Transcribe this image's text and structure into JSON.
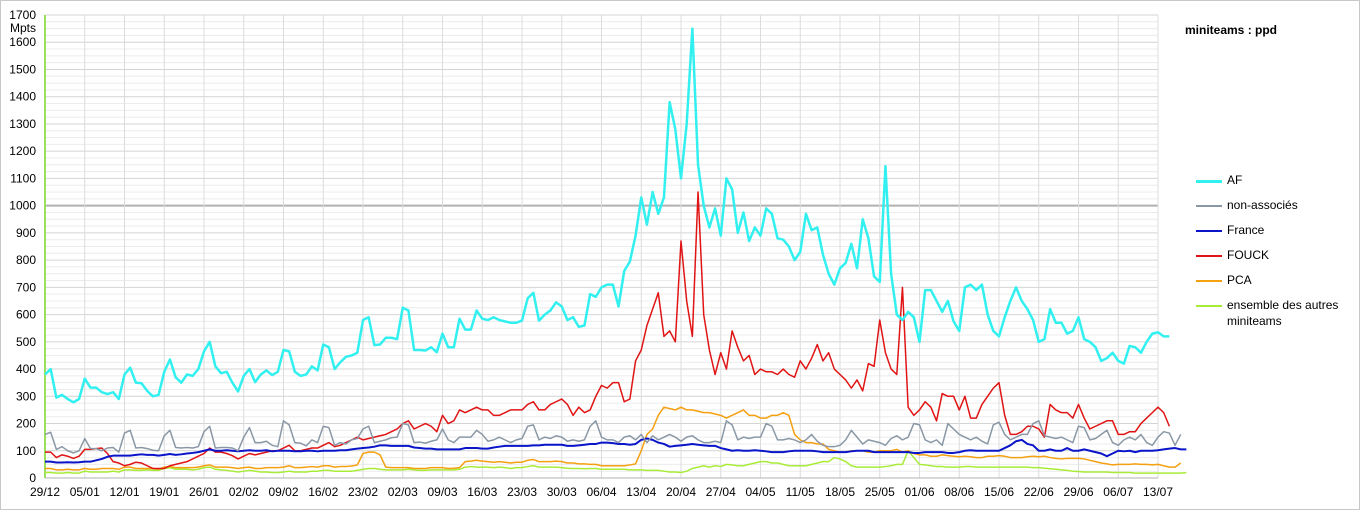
{
  "chart_data": {
    "type": "line",
    "title": "miniteams : ppd",
    "ylabel": "Mpts",
    "xlabel": "",
    "ylim": [
      0,
      1700
    ],
    "yticks": [
      0,
      100,
      200,
      300,
      400,
      500,
      600,
      700,
      800,
      900,
      1000,
      1100,
      1200,
      1300,
      1400,
      1500,
      1600,
      1700
    ],
    "xtick_labels": [
      "29/12",
      "05/01",
      "12/01",
      "19/01",
      "26/01",
      "02/02",
      "09/02",
      "16/02",
      "23/02",
      "02/03",
      "09/03",
      "16/03",
      "23/03",
      "30/03",
      "06/04",
      "13/04",
      "20/04",
      "27/04",
      "04/05",
      "11/05",
      "18/05",
      "25/05",
      "01/06",
      "08/06",
      "15/06",
      "22/06",
      "29/06",
      "06/07",
      "13/07"
    ],
    "days": 197,
    "grid": "on",
    "legend_position": "right",
    "series": [
      {
        "name": "AF",
        "color": "#33f0f0",
        "width": 2.5,
        "values": [
          380,
          400,
          295,
          305,
          290,
          278,
          290,
          365,
          332,
          332,
          315,
          308,
          315,
          290,
          380,
          405,
          350,
          348,
          320,
          300,
          305,
          390,
          435,
          370,
          350,
          380,
          375,
          400,
          465,
          500,
          410,
          385,
          390,
          350,
          318,
          375,
          400,
          352,
          380,
          395,
          378,
          390,
          470,
          465,
          390,
          375,
          380,
          410,
          395,
          490,
          480,
          400,
          425,
          445,
          450,
          460,
          580,
          590,
          488,
          490,
          515,
          515,
          510,
          625,
          615,
          470,
          470,
          468,
          480,
          462,
          530,
          480,
          480,
          585,
          545,
          545,
          615,
          585,
          580,
          590,
          580,
          575,
          570,
          570,
          578,
          660,
          680,
          578,
          600,
          615,
          645,
          630,
          580,
          590,
          555,
          560,
          675,
          665,
          700,
          710,
          710,
          630,
          760,
          795,
          890,
          1030,
          930,
          1050,
          970,
          1030,
          1380,
          1280,
          1100,
          1300,
          1650,
          1150,
          1000,
          920,
          990,
          890,
          1100,
          1060,
          900,
          975,
          870,
          920,
          890,
          990,
          970,
          880,
          875,
          850,
          800,
          830,
          970,
          910,
          920,
          820,
          750,
          710,
          770,
          790,
          860,
          770,
          950,
          880,
          740,
          720,
          1145,
          750,
          600,
          580,
          610,
          590,
          500,
          690,
          690,
          650,
          610,
          650,
          575,
          540,
          700,
          710,
          690,
          710,
          600,
          540,
          520,
          590,
          650,
          700,
          650,
          620,
          580,
          500,
          510,
          620,
          570,
          570,
          530,
          540,
          590,
          510,
          500,
          480,
          430,
          440,
          460,
          430,
          420,
          485,
          480,
          460,
          500,
          530,
          535,
          520,
          520
        ]
      },
      {
        "name": "non-associés",
        "color": "#8a98a6",
        "width": 1.5,
        "values": [
          160,
          168,
          105,
          115,
          100,
          92,
          100,
          145,
          108,
          108,
          100,
          110,
          112,
          95,
          165,
          175,
          110,
          112,
          108,
          102,
          100,
          155,
          175,
          112,
          110,
          112,
          110,
          115,
          170,
          190,
          110,
          112,
          112,
          110,
          100,
          150,
          185,
          130,
          130,
          135,
          120,
          115,
          210,
          195,
          130,
          128,
          118,
          140,
          130,
          190,
          185,
          120,
          130,
          125,
          140,
          145,
          180,
          190,
          130,
          135,
          140,
          148,
          150,
          200,
          195,
          130,
          132,
          128,
          135,
          140,
          180,
          140,
          130,
          150,
          150,
          150,
          175,
          160,
          135,
          140,
          150,
          140,
          130,
          140,
          145,
          190,
          195,
          140,
          150,
          145,
          155,
          150,
          135,
          140,
          135,
          140,
          190,
          210,
          150,
          140,
          140,
          130,
          150,
          155,
          140,
          160,
          130,
          155,
          140,
          150,
          160,
          150,
          135,
          150,
          155,
          140,
          130,
          130,
          135,
          130,
          210,
          195,
          140,
          150,
          145,
          150,
          150,
          200,
          190,
          140,
          140,
          145,
          140,
          130,
          140,
          160,
          135,
          120,
          115,
          115,
          120,
          140,
          175,
          150,
          125,
          140,
          135,
          130,
          120,
          145,
          155,
          140,
          150,
          200,
          195,
          140,
          130,
          140,
          120,
          200,
          180,
          160,
          150,
          140,
          150,
          135,
          125,
          195,
          205,
          160,
          140,
          150,
          160,
          160,
          200,
          210,
          155,
          150,
          145,
          150,
          140,
          130,
          190,
          185,
          140,
          145,
          160,
          175,
          130,
          120,
          140,
          150,
          140,
          160,
          130,
          120,
          150,
          170,
          165,
          120,
          160
        ]
      },
      {
        "name": "France",
        "color": "#0a14c8",
        "width": 2,
        "values": [
          60,
          60,
          57,
          57,
          58,
          57,
          58,
          60,
          60,
          65,
          70,
          78,
          82,
          82,
          82,
          82,
          85,
          87,
          85,
          85,
          82,
          85,
          88,
          85,
          87,
          90,
          92,
          95,
          100,
          105,
          100,
          100,
          102,
          100,
          98,
          100,
          102,
          100,
          100,
          102,
          98,
          100,
          100,
          100,
          98,
          98,
          100,
          100,
          98,
          100,
          100,
          100,
          102,
          102,
          105,
          108,
          110,
          112,
          115,
          120,
          120,
          118,
          118,
          118,
          118,
          112,
          110,
          108,
          108,
          105,
          105,
          105,
          105,
          105,
          110,
          110,
          110,
          108,
          108,
          112,
          115,
          118,
          118,
          118,
          118,
          118,
          120,
          120,
          122,
          122,
          122,
          122,
          118,
          118,
          120,
          122,
          125,
          125,
          130,
          130,
          128,
          125,
          125,
          122,
          125,
          140,
          145,
          140,
          130,
          125,
          115,
          118,
          120,
          122,
          125,
          122,
          120,
          118,
          118,
          110,
          105,
          100,
          102,
          100,
          100,
          102,
          100,
          98,
          95,
          95,
          95,
          98,
          100,
          100,
          100,
          100,
          98,
          95,
          95,
          95,
          95,
          95,
          98,
          100,
          100,
          100,
          95,
          95,
          95,
          95,
          95,
          95,
          95,
          92,
          92,
          95,
          95,
          95,
          95,
          92,
          92,
          95,
          100,
          102,
          100,
          100,
          100,
          100,
          100,
          110,
          120,
          135,
          140,
          125,
          120,
          100,
          100,
          105,
          100,
          100,
          110,
          100,
          100,
          105,
          100,
          95,
          90,
          80,
          90,
          100,
          98,
          100,
          95,
          100,
          100,
          100,
          102,
          105,
          108,
          110,
          105,
          105
        ]
      },
      {
        "name": "FOUCK",
        "color": "#e01414",
        "width": 1.5,
        "values": [
          95,
          95,
          75,
          85,
          80,
          72,
          80,
          105,
          105,
          108,
          110,
          90,
          60,
          55,
          45,
          50,
          58,
          55,
          45,
          35,
          35,
          35,
          45,
          50,
          55,
          60,
          70,
          80,
          90,
          110,
          95,
          95,
          90,
          82,
          70,
          80,
          90,
          85,
          90,
          95,
          100,
          100,
          110,
          120,
          100,
          100,
          105,
          110,
          110,
          120,
          130,
          115,
          120,
          130,
          140,
          150,
          140,
          145,
          150,
          155,
          160,
          170,
          180,
          200,
          210,
          180,
          190,
          200,
          190,
          170,
          230,
          200,
          210,
          250,
          240,
          250,
          260,
          250,
          250,
          230,
          230,
          240,
          250,
          250,
          250,
          270,
          280,
          250,
          250,
          270,
          280,
          290,
          270,
          230,
          260,
          240,
          250,
          300,
          340,
          330,
          350,
          350,
          280,
          290,
          430,
          470,
          560,
          620,
          680,
          520,
          540,
          500,
          870,
          650,
          520,
          1050,
          600,
          470,
          380,
          460,
          400,
          540,
          480,
          430,
          450,
          380,
          400,
          390,
          390,
          380,
          400,
          380,
          370,
          430,
          400,
          440,
          490,
          430,
          460,
          400,
          380,
          360,
          330,
          360,
          320,
          420,
          410,
          580,
          460,
          400,
          380,
          700,
          260,
          230,
          250,
          280,
          260,
          210,
          310,
          300,
          300,
          250,
          300,
          220,
          220,
          270,
          300,
          330,
          350,
          230,
          160,
          160,
          170,
          190,
          190,
          180,
          150,
          270,
          250,
          240,
          240,
          220,
          270,
          220,
          180,
          190,
          200,
          210,
          210,
          160,
          160,
          170,
          170,
          200,
          220,
          240,
          260,
          240,
          190
        ]
      },
      {
        "name": "PCA",
        "color": "#f4a010",
        "width": 1.5,
        "values": [
          35,
          35,
          30,
          30,
          32,
          30,
          30,
          35,
          32,
          32,
          35,
          35,
          35,
          32,
          40,
          40,
          35,
          35,
          35,
          35,
          32,
          40,
          42,
          38,
          38,
          38,
          38,
          40,
          45,
          48,
          40,
          40,
          40,
          38,
          35,
          38,
          40,
          35,
          35,
          38,
          38,
          38,
          40,
          45,
          38,
          38,
          40,
          42,
          40,
          45,
          45,
          40,
          42,
          42,
          44,
          48,
          90,
          95,
          95,
          85,
          40,
          38,
          38,
          38,
          38,
          35,
          35,
          35,
          38,
          38,
          38,
          35,
          36,
          38,
          60,
          62,
          65,
          62,
          60,
          58,
          60,
          58,
          55,
          58,
          58,
          65,
          68,
          60,
          60,
          60,
          62,
          60,
          55,
          55,
          52,
          52,
          50,
          50,
          45,
          45,
          45,
          45,
          45,
          48,
          52,
          100,
          160,
          180,
          230,
          260,
          255,
          250,
          260,
          250,
          250,
          245,
          240,
          240,
          235,
          230,
          220,
          230,
          240,
          250,
          230,
          230,
          220,
          220,
          230,
          230,
          240,
          230,
          160,
          140,
          130,
          130,
          125,
          125,
          105,
          100,
          95,
          95,
          100,
          100,
          100,
          95,
          95,
          100,
          100,
          100,
          105,
          95,
          100,
          90,
          85,
          85,
          80,
          80,
          85,
          82,
          80,
          78,
          80,
          78,
          75,
          75,
          80,
          80,
          82,
          80,
          75,
          75,
          75,
          78,
          80,
          78,
          80,
          75,
          72,
          70,
          72,
          72,
          72,
          70,
          65,
          60,
          55,
          52,
          48,
          50,
          50,
          50,
          52,
          50,
          50,
          48,
          50,
          45,
          40,
          40,
          55
        ]
      },
      {
        "name": "ensemble des autres miniteams",
        "color": "#a8ec38",
        "width": 1.5,
        "values": [
          20,
          20,
          18,
          18,
          20,
          18,
          18,
          25,
          22,
          22,
          22,
          22,
          25,
          22,
          30,
          30,
          28,
          28,
          30,
          28,
          28,
          35,
          38,
          32,
          32,
          32,
          30,
          32,
          38,
          40,
          32,
          30,
          28,
          25,
          22,
          25,
          28,
          25,
          22,
          22,
          20,
          20,
          22,
          25,
          22,
          22,
          22,
          25,
          25,
          28,
          28,
          25,
          25,
          25,
          25,
          28,
          32,
          35,
          35,
          32,
          30,
          30,
          30,
          30,
          32,
          30,
          28,
          28,
          30,
          30,
          30,
          30,
          30,
          32,
          40,
          42,
          40,
          40,
          40,
          38,
          40,
          38,
          35,
          38,
          38,
          42,
          45,
          40,
          40,
          40,
          40,
          38,
          36,
          35,
          35,
          34,
          35,
          35,
          32,
          32,
          32,
          32,
          32,
          30,
          30,
          30,
          28,
          28,
          28,
          25,
          22,
          22,
          20,
          25,
          35,
          40,
          45,
          40,
          45,
          42,
          50,
          48,
          45,
          45,
          50,
          55,
          60,
          60,
          55,
          55,
          50,
          45,
          45,
          45,
          45,
          50,
          55,
          60,
          60,
          75,
          70,
          60,
          45,
          40,
          40,
          40,
          40,
          40,
          42,
          45,
          50,
          50,
          100,
          75,
          50,
          48,
          45,
          42,
          42,
          40,
          40,
          40,
          42,
          42,
          40,
          40,
          40,
          40,
          40,
          40,
          40,
          40,
          40,
          40,
          38,
          38,
          36,
          34,
          32,
          30,
          28,
          25,
          24,
          22,
          22,
          22,
          22,
          22,
          20,
          20,
          20,
          20,
          18,
          18,
          18,
          18,
          18,
          18,
          18,
          18,
          18,
          20
        ]
      }
    ]
  }
}
